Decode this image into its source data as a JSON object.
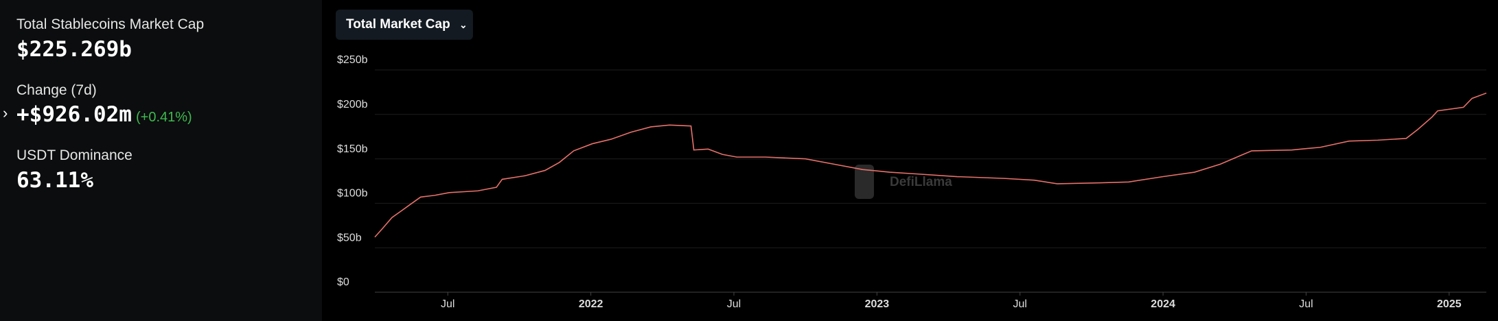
{
  "stats": [
    {
      "label": "Total Stablecoins Market Cap",
      "value": "$225.269b"
    },
    {
      "label": "Change (7d)",
      "value": "+$926.02m",
      "change": "(+0.41%)"
    },
    {
      "label": "USDT Dominance",
      "value": "63.11%"
    }
  ],
  "controls": {
    "metric": "Total Market Cap"
  },
  "watermark": "DefiLlama",
  "chart_data": {
    "type": "line",
    "x": [
      2021.245,
      2021.27,
      2021.305,
      2021.34,
      2021.37,
      2021.405,
      2021.455,
      2021.505,
      2021.605,
      2021.67,
      2021.69,
      2021.77,
      2021.84,
      2021.89,
      2021.94,
      2022.005,
      2022.07,
      2022.14,
      2022.21,
      2022.275,
      2022.35,
      2022.36,
      2022.41,
      2022.46,
      2022.51,
      2022.61,
      2022.75,
      2022.85,
      2022.95,
      2023.045,
      2023.14,
      2023.28,
      2023.445,
      2023.55,
      2023.63,
      2023.78,
      2023.88,
      2024.0,
      2024.11,
      2024.2,
      2024.28,
      2024.31,
      2024.45,
      2024.55,
      2024.65,
      2024.75,
      2024.85,
      2024.89,
      2024.94,
      2024.96,
      2025.05,
      2025.08,
      2025.13
    ],
    "series": [
      {
        "name": "Total Market Cap",
        "color": "#e8716b",
        "values": [
          62,
          71,
          84,
          92,
          99,
          107,
          109,
          112,
          114,
          118,
          127,
          131,
          137,
          146,
          159,
          167,
          172,
          180,
          186,
          188,
          187,
          160,
          161,
          155,
          152,
          152,
          150,
          144,
          138,
          135,
          133,
          130,
          128,
          126,
          122,
          123,
          124,
          130,
          135,
          144,
          155,
          159,
          160,
          163,
          170,
          171,
          173,
          183,
          197,
          204,
          208,
          218,
          224
        ]
      }
    ],
    "xlim": [
      2021.245,
      2025.13
    ],
    "xticks": [
      {
        "value": 2021.5,
        "label": "Jul"
      },
      2022,
      {
        "value": 2022.5,
        "label": "Jul"
      },
      2023,
      {
        "value": 2023.5,
        "label": "Jul"
      },
      2024,
      {
        "value": 2024.5,
        "label": "Jul"
      },
      2025
    ],
    "ylim": [
      0,
      250
    ],
    "yticks": [
      {
        "value": 0,
        "label": "$0"
      },
      {
        "value": 50,
        "label": "$50b"
      },
      {
        "value": 100,
        "label": "$100b"
      },
      {
        "value": 150,
        "label": "$150b"
      },
      {
        "value": 200,
        "label": "$200b"
      },
      {
        "value": 250,
        "label": "$250b"
      }
    ],
    "grid": true
  }
}
